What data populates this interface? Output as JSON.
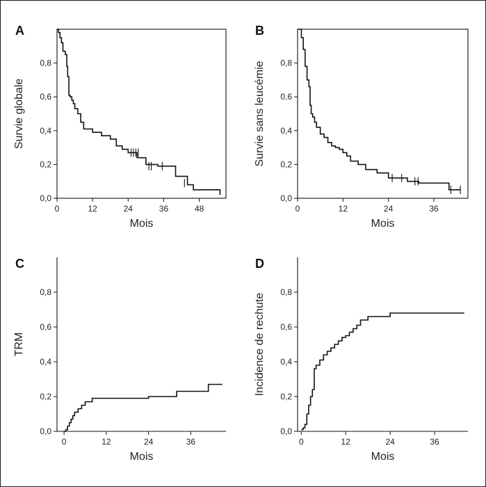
{
  "chart_data": [
    {
      "id": "A",
      "letter": "A",
      "type": "line",
      "step": "survival",
      "xlabel": "Mois",
      "ylabel": "Survie globale",
      "xlim": [
        0,
        57
      ],
      "ylim": [
        0,
        1
      ],
      "xticks": [
        0,
        12,
        24,
        36,
        48
      ],
      "xtick_labels": [
        "0",
        "12",
        "24",
        "36",
        "48"
      ],
      "yticks": [
        0,
        0.2,
        0.4,
        0.6,
        0.8
      ],
      "ytick_labels": [
        "0,0",
        "0,2",
        "0,4",
        "0,6",
        "0,8"
      ],
      "x": [
        0,
        0.5,
        1,
        1.5,
        2,
        2.8,
        3.3,
        3.6,
        4,
        4.4,
        5,
        5.5,
        6,
        7,
        8,
        9,
        12,
        15,
        18,
        20,
        22,
        24,
        27,
        30,
        34,
        36,
        40,
        44,
        46,
        52,
        55
      ],
      "y": [
        1.0,
        0.98,
        0.95,
        0.92,
        0.87,
        0.85,
        0.78,
        0.72,
        0.61,
        0.6,
        0.58,
        0.56,
        0.53,
        0.5,
        0.45,
        0.41,
        0.39,
        0.37,
        0.35,
        0.31,
        0.29,
        0.27,
        0.24,
        0.2,
        0.19,
        0.19,
        0.13,
        0.08,
        0.05,
        0.05,
        0.02
      ],
      "censored": [
        [
          25,
          0.27
        ],
        [
          25.8,
          0.27
        ],
        [
          26.6,
          0.27
        ],
        [
          27.4,
          0.27
        ],
        [
          31,
          0.19
        ],
        [
          31.8,
          0.19
        ],
        [
          35.5,
          0.19
        ],
        [
          43,
          0.09
        ]
      ]
    },
    {
      "id": "B",
      "letter": "B",
      "type": "line",
      "step": "survival",
      "xlabel": "Mois",
      "ylabel": "Survie sans leucémie",
      "xlim": [
        0,
        45
      ],
      "ylim": [
        0,
        1
      ],
      "xticks": [
        0,
        12,
        24,
        36
      ],
      "xtick_labels": [
        "0",
        "12",
        "24",
        "36"
      ],
      "yticks": [
        0,
        0.2,
        0.4,
        0.6,
        0.8
      ],
      "ytick_labels": [
        "0,0",
        "0,2",
        "0,4",
        "0,6",
        "0,8"
      ],
      "x": [
        0,
        1,
        1.5,
        2,
        2.5,
        3,
        3.3,
        3.6,
        4,
        4.5,
        5,
        6,
        7,
        8,
        9,
        10,
        11,
        12,
        13,
        14,
        16,
        18,
        21,
        24,
        29,
        32,
        40,
        43
      ],
      "y": [
        1.0,
        0.95,
        0.88,
        0.78,
        0.7,
        0.66,
        0.55,
        0.5,
        0.48,
        0.45,
        0.42,
        0.38,
        0.36,
        0.33,
        0.31,
        0.3,
        0.29,
        0.27,
        0.25,
        0.22,
        0.2,
        0.17,
        0.15,
        0.12,
        0.1,
        0.09,
        0.05,
        0.05
      ],
      "censored": [
        [
          25,
          0.12
        ],
        [
          27.5,
          0.12
        ],
        [
          31,
          0.1
        ],
        [
          31.8,
          0.1
        ],
        [
          40.5,
          0.05
        ],
        [
          43,
          0.05
        ]
      ]
    },
    {
      "id": "C",
      "letter": "C",
      "type": "line",
      "step": "incidence",
      "xlabel": "Mois",
      "ylabel": "TRM",
      "xlim": [
        -2,
        46
      ],
      "ylim": [
        0,
        1
      ],
      "xticks": [
        0,
        12,
        24,
        36
      ],
      "xtick_labels": [
        "0",
        "12",
        "24",
        "36"
      ],
      "yticks": [
        0,
        0.2,
        0.4,
        0.6,
        0.8
      ],
      "ytick_labels": [
        "0,0",
        "0,2",
        "0,4",
        "0,6",
        "0,8"
      ],
      "x": [
        0,
        0.5,
        1,
        1.5,
        2,
        2.5,
        3,
        4,
        5,
        6,
        8,
        24,
        32,
        41,
        45
      ],
      "y": [
        0,
        0.01,
        0.03,
        0.05,
        0.07,
        0.09,
        0.11,
        0.13,
        0.15,
        0.17,
        0.19,
        0.2,
        0.23,
        0.27,
        0.27
      ]
    },
    {
      "id": "D",
      "letter": "D",
      "type": "line",
      "step": "incidence",
      "xlabel": "Mois",
      "ylabel": "Incidence de rechute",
      "xlim": [
        -1,
        45
      ],
      "ylim": [
        0,
        1
      ],
      "xticks": [
        0,
        12,
        24,
        36
      ],
      "xtick_labels": [
        "0",
        "12",
        "24",
        "36"
      ],
      "yticks": [
        0,
        0.2,
        0.4,
        0.6,
        0.8
      ],
      "ytick_labels": [
        "0,0",
        "0,2",
        "0,4",
        "0,6",
        "0,8"
      ],
      "x": [
        0,
        0.5,
        1,
        1.5,
        2,
        2.5,
        3,
        3.5,
        4,
        5,
        6,
        7,
        8,
        9,
        10,
        11,
        12,
        13,
        14,
        15,
        16,
        18,
        24,
        44
      ],
      "y": [
        0.01,
        0.02,
        0.04,
        0.1,
        0.15,
        0.2,
        0.24,
        0.36,
        0.38,
        0.41,
        0.44,
        0.46,
        0.48,
        0.5,
        0.52,
        0.54,
        0.55,
        0.57,
        0.59,
        0.61,
        0.64,
        0.66,
        0.68,
        0.68
      ]
    }
  ]
}
